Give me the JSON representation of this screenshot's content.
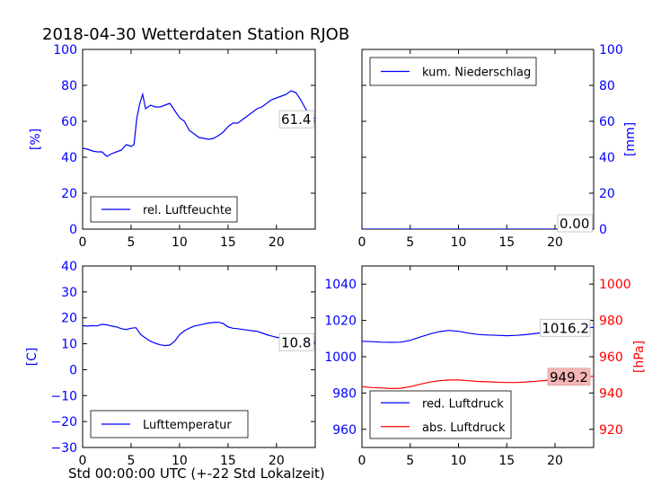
{
  "figure": {
    "title": "2018-04-30 Wetterdaten Station RJOB",
    "xlabel": "Std 00:00:00 UTC (+-22 Std Lokalzeit)"
  },
  "colors": {
    "blue": "#0000ff",
    "red": "#ff0000",
    "black": "#000000",
    "label_box_red": "#f4b6b6"
  },
  "chart_data": [
    {
      "type": "line",
      "ylabel": "[%]",
      "ylim": [
        0,
        100
      ],
      "yticks": [
        0,
        20,
        40,
        60,
        80,
        100
      ],
      "xlim": [
        0,
        24
      ],
      "xticks": [
        0,
        5,
        10,
        15,
        20
      ],
      "legend_position": "lower-left",
      "last_value_label": "61.4",
      "series": [
        {
          "name": "rel. Luftfeuchte",
          "color": "#0000ff",
          "x": [
            0,
            0.5,
            1,
            1.5,
            2,
            2.5,
            3,
            3.5,
            4,
            4.5,
            5,
            5.3,
            5.6,
            5.9,
            6.2,
            6.5,
            7,
            7.5,
            8,
            8.5,
            9,
            9.5,
            10,
            10.5,
            11,
            11.5,
            12,
            12.5,
            13,
            13.5,
            14,
            14.5,
            15,
            15.5,
            16,
            16.5,
            17,
            17.5,
            18,
            18.5,
            19,
            19.5,
            20,
            20.5,
            21,
            21.5,
            22,
            22.5,
            23,
            23.5,
            24
          ],
          "y": [
            45,
            44.5,
            43.5,
            43,
            43,
            40.5,
            42,
            43,
            44,
            47,
            46,
            47,
            62,
            70,
            75,
            67,
            69,
            68,
            68,
            69,
            70,
            66,
            62,
            60,
            55,
            53,
            51,
            50.5,
            50,
            50.5,
            52,
            54,
            57,
            59,
            59,
            61,
            63,
            65,
            67,
            68,
            70,
            72,
            73,
            74,
            75,
            77,
            76,
            72,
            67,
            63,
            61.4
          ]
        }
      ]
    },
    {
      "type": "line",
      "ylabel": "[mm]",
      "ylim": [
        0,
        100
      ],
      "yticks": [
        0,
        20,
        40,
        60,
        80,
        100
      ],
      "xlim": [
        0,
        24
      ],
      "xticks": [
        0,
        5,
        10,
        15,
        20
      ],
      "legend_position": "upper-left",
      "last_value_label": "0.00",
      "series": [
        {
          "name": "kum. Niederschlag",
          "color": "#0000ff",
          "x": [
            0,
            24
          ],
          "y": [
            0,
            0
          ]
        }
      ]
    },
    {
      "type": "line",
      "ylabel": "[C]",
      "ylim": [
        -30,
        40
      ],
      "yticks": [
        -30,
        -20,
        -10,
        0,
        10,
        20,
        30,
        40
      ],
      "xlim": [
        0,
        24
      ],
      "xticks": [
        0,
        5,
        10,
        15,
        20
      ],
      "legend_position": "lower-left",
      "last_value_label": "10.8",
      "series": [
        {
          "name": "Lufttemperatur",
          "color": "#0000ff",
          "x": [
            0,
            0.5,
            1,
            1.5,
            2,
            2.5,
            3,
            3.5,
            4,
            4.5,
            5,
            5.5,
            6,
            6.5,
            7,
            7.5,
            8,
            8.5,
            9,
            9.5,
            10,
            10.5,
            11,
            11.5,
            12,
            12.5,
            13,
            13.5,
            14,
            14.5,
            15,
            15.5,
            16,
            16.5,
            17,
            17.5,
            18,
            18.5,
            19,
            19.5,
            20,
            20.5,
            21,
            21.5,
            22,
            22.5,
            23,
            23.5,
            24
          ],
          "y": [
            17,
            16.8,
            17,
            16.9,
            17.5,
            17.3,
            16.8,
            16.5,
            15.8,
            15.5,
            16,
            16.2,
            13.5,
            12.2,
            11,
            10.2,
            9.6,
            9.3,
            9.5,
            11,
            13.5,
            15,
            16,
            16.8,
            17.2,
            17.6,
            18,
            18.2,
            18.3,
            17.8,
            16.5,
            16,
            15.8,
            15.5,
            15.3,
            15,
            14.8,
            14.2,
            13.5,
            13,
            12.5,
            12.2,
            12,
            11.8,
            11.4,
            11.2,
            11,
            10.9,
            10.8
          ]
        }
      ]
    },
    {
      "type": "line",
      "ylabel": "[hPa]",
      "ylim_left": [
        950,
        1050
      ],
      "yticks_left": [
        960,
        980,
        1000,
        1020,
        1040
      ],
      "ylim_right": [
        910,
        1010
      ],
      "yticks_right": [
        920,
        940,
        960,
        980,
        1000
      ],
      "xlim": [
        0,
        24
      ],
      "xticks": [
        0,
        5,
        10,
        15,
        20
      ],
      "legend_position": "lower-left",
      "series": [
        {
          "name": "red. Luftdruck",
          "color": "#0000ff",
          "axis": "left",
          "last_value_label": "1016.2",
          "x": [
            0,
            1,
            2,
            3,
            4,
            5,
            6,
            7,
            8,
            9,
            10,
            11,
            12,
            13,
            14,
            15,
            16,
            17,
            18,
            19,
            20,
            21,
            22,
            23,
            24
          ],
          "y": [
            1008.5,
            1008.3,
            1008,
            1007.9,
            1008,
            1009,
            1010.8,
            1012.5,
            1013.8,
            1014.5,
            1014,
            1013,
            1012.3,
            1012,
            1011.8,
            1011.6,
            1011.8,
            1012.2,
            1012.8,
            1013.5,
            1014.2,
            1014.8,
            1015.5,
            1016,
            1016.2
          ]
        },
        {
          "name": "abs. Luftdruck",
          "color": "#ff0000",
          "axis": "right",
          "last_value_label": "949.2",
          "x": [
            0,
            1,
            2,
            3,
            4,
            5,
            6,
            7,
            8,
            9,
            10,
            11,
            12,
            13,
            14,
            15,
            16,
            17,
            18,
            19,
            20,
            21,
            22,
            23,
            24
          ],
          "y": [
            943.5,
            943,
            942.8,
            942.5,
            942.6,
            943.5,
            944.8,
            946,
            946.8,
            947.2,
            947.2,
            946.8,
            946.4,
            946.2,
            946,
            945.8,
            945.8,
            946.1,
            946.5,
            946.9,
            947.4,
            948,
            948.5,
            948.9,
            949.2
          ]
        }
      ]
    }
  ]
}
